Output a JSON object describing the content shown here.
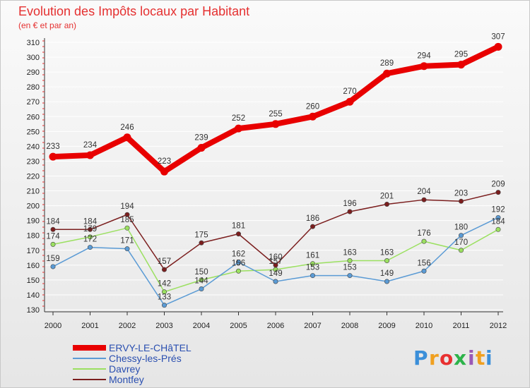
{
  "chart_data": {
    "type": "line",
    "title": "Evolution des Impôts locaux par Habitant",
    "subtitle": "(en € et par an)",
    "categories": [
      "2000",
      "2001",
      "2002",
      "2003",
      "2004",
      "2005",
      "2006",
      "2007",
      "2008",
      "2009",
      "2010",
      "2011",
      "2012"
    ],
    "ylim": [
      130,
      310
    ],
    "yticks": [
      130,
      140,
      150,
      160,
      170,
      180,
      190,
      200,
      210,
      220,
      230,
      240,
      250,
      260,
      270,
      280,
      290,
      300,
      310
    ],
    "series": [
      {
        "name": "ERVY-LE-CHâTEL",
        "color": "#e80000",
        "values": [
          233,
          234,
          246,
          223,
          239,
          252,
          255,
          260,
          270,
          289,
          294,
          295,
          307
        ]
      },
      {
        "name": "Chessy-les-Prés",
        "color": "#5b9bd5",
        "values": [
          159,
          172,
          171,
          133,
          144,
          162,
          149,
          153,
          153,
          149,
          156,
          180,
          192
        ]
      },
      {
        "name": "Davrey",
        "color": "#9be060",
        "values": [
          174,
          179,
          185,
          142,
          150,
          156,
          157,
          161,
          163,
          163,
          176,
          170,
          184
        ]
      },
      {
        "name": "Montfey",
        "color": "#7b1e1e",
        "values": [
          184,
          184,
          194,
          157,
          175,
          181,
          160,
          186,
          196,
          201,
          204,
          203,
          209
        ]
      }
    ],
    "legend": "bottom-left"
  },
  "brand": {
    "letters": [
      "P",
      "r",
      "o",
      "x",
      "i",
      "t",
      "i"
    ],
    "colors": [
      "#3b8fd9",
      "#f0a020",
      "#e83030",
      "#2db34a",
      "#9b59b6",
      "#f0a020",
      "#3b8fd9"
    ]
  }
}
